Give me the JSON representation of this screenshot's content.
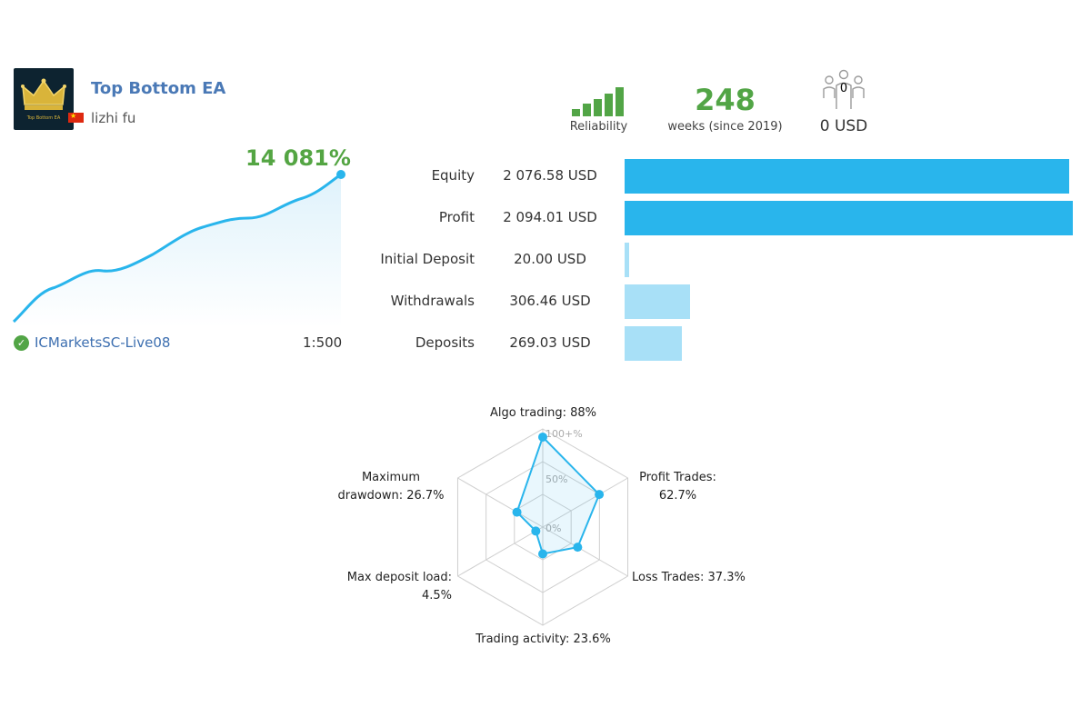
{
  "signal": {
    "name": "Top Bottom EA",
    "author": "lizhi fu",
    "logo_text": "Top Bottom EA",
    "growth": "14 081%",
    "broker": "ICMarketsSC-Live08",
    "leverage": "1:500"
  },
  "stats": {
    "reliability_label": "Reliability",
    "reliability_level": 5,
    "weeks": "248",
    "weeks_label": "weeks (since 2019)",
    "subscribers": "0",
    "subscribers_usd": "0 USD"
  },
  "balance": [
    {
      "label": "Equity",
      "value": "2 076.58 USD",
      "amount": 2076.58
    },
    {
      "label": "Profit",
      "value": "2 094.01 USD",
      "amount": 2094.01
    },
    {
      "label": "Initial Deposit",
      "value": "20.00 USD",
      "amount": 20.0
    },
    {
      "label": "Withdrawals",
      "value": "306.46 USD",
      "amount": 306.46
    },
    {
      "label": "Deposits",
      "value": "269.03 USD",
      "amount": 269.03
    }
  ],
  "radar": {
    "scale_labels": [
      "100+%",
      "50%",
      "0%"
    ],
    "axes": [
      {
        "label": "Algo trading: 88%",
        "value": 88
      },
      {
        "label": "Profit Trades: 62.7%",
        "value": 62.7
      },
      {
        "label": "Loss Trades: 37.3%",
        "value": 37.3
      },
      {
        "label": "Trading activity: 23.6%",
        "value": 23.6
      },
      {
        "label": "Max deposit load: 4.5%",
        "value": 4.5
      },
      {
        "label": "Maximum drawdown: 26.7%",
        "value": 26.7
      }
    ],
    "label_lines": [
      [
        "Algo trading: 88%"
      ],
      [
        "Profit Trades:",
        "62.7%"
      ],
      [
        "Loss Trades: 37.3%"
      ],
      [
        "Trading activity: 23.6%"
      ],
      [
        "Max deposit load:",
        "4.5%"
      ],
      [
        "Maximum",
        "drawdown: 26.7%"
      ]
    ]
  },
  "colors": {
    "green": "#52a546",
    "blue": "#29b5ec",
    "light_blue": "#a8e0f7",
    "link": "#4a79b6"
  }
}
